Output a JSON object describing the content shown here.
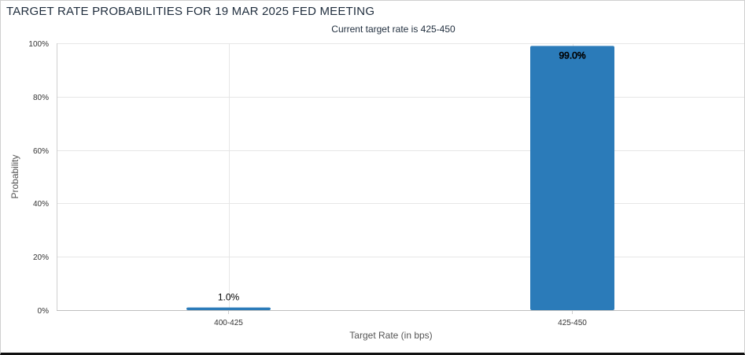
{
  "chart_data": {
    "type": "bar",
    "title": "TARGET RATE PROBABILITIES FOR 19 MAR 2025 FED MEETING",
    "subtitle": "Current target rate is 425-450",
    "xlabel": "Target Rate (in bps)",
    "ylabel": "Probability",
    "categories": [
      "400-425",
      "425-450"
    ],
    "values": [
      1.0,
      99.0
    ],
    "data_labels": [
      "1.0%",
      "99.0%"
    ],
    "ylim": [
      0,
      100
    ],
    "yticks": [
      0,
      20,
      40,
      60,
      80,
      100
    ],
    "ytick_labels": [
      "0%",
      "20%",
      "40%",
      "60%",
      "80%",
      "100%"
    ],
    "grid": true,
    "legend": "none",
    "bar_color": "#2b7bb9",
    "grid_color": "#e6e6e6"
  }
}
